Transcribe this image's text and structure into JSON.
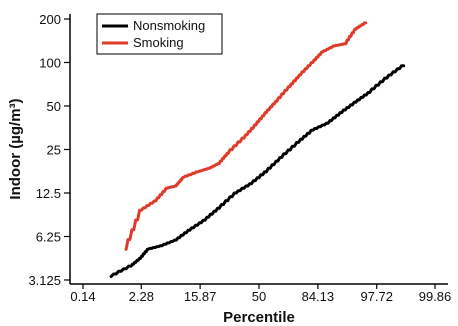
{
  "chart_data": {
    "type": "line",
    "title": "",
    "xlabel": "Percentile",
    "ylabel": "Indoor (µg/m³)",
    "y_scale": "log2",
    "ylim": [
      3.125,
      200
    ],
    "xlim": [
      0.14,
      99.86
    ],
    "x_scale": "probit",
    "x_ticks": [
      "0.14",
      "2.28",
      "15.87",
      "50",
      "84.13",
      "97.72",
      "99.86"
    ],
    "y_ticks": [
      "200",
      "100",
      "50",
      "25",
      "12.5",
      "6.25",
      "3.125"
    ],
    "legend_position": "top-left",
    "grid": false,
    "series": [
      {
        "name": "Nonsmoking",
        "color": "#000000",
        "points": [
          [
            0.6,
            3.3
          ],
          [
            1.5,
            3.9
          ],
          [
            2.2,
            4.4
          ],
          [
            3.0,
            5.1
          ],
          [
            5,
            5.4
          ],
          [
            8,
            5.9
          ],
          [
            12,
            6.9
          ],
          [
            18,
            8.1
          ],
          [
            25,
            9.8
          ],
          [
            35,
            12.5
          ],
          [
            45,
            14.5
          ],
          [
            55,
            17.5
          ],
          [
            65,
            22
          ],
          [
            75,
            28
          ],
          [
            82,
            34
          ],
          [
            88,
            38
          ],
          [
            92,
            45
          ],
          [
            95,
            53
          ],
          [
            97,
            62
          ],
          [
            98.5,
            78
          ],
          [
            99.3,
            95
          ]
        ]
      },
      {
        "name": "Smoking",
        "color": "#e03a2a",
        "points": [
          [
            1.2,
            5.1
          ],
          [
            2.3,
            9.5
          ],
          [
            4,
            11
          ],
          [
            6,
            13.5
          ],
          [
            8,
            14
          ],
          [
            10,
            16
          ],
          [
            15,
            17.5
          ],
          [
            20,
            18.5
          ],
          [
            25,
            20
          ],
          [
            30,
            23.5
          ],
          [
            40,
            30
          ],
          [
            48,
            37
          ],
          [
            55,
            45
          ],
          [
            62,
            54
          ],
          [
            70,
            68
          ],
          [
            76,
            82
          ],
          [
            82,
            100
          ],
          [
            86,
            118
          ],
          [
            90,
            130
          ],
          [
            93,
            135
          ],
          [
            95,
            170
          ],
          [
            96.5,
            188
          ]
        ]
      }
    ]
  }
}
